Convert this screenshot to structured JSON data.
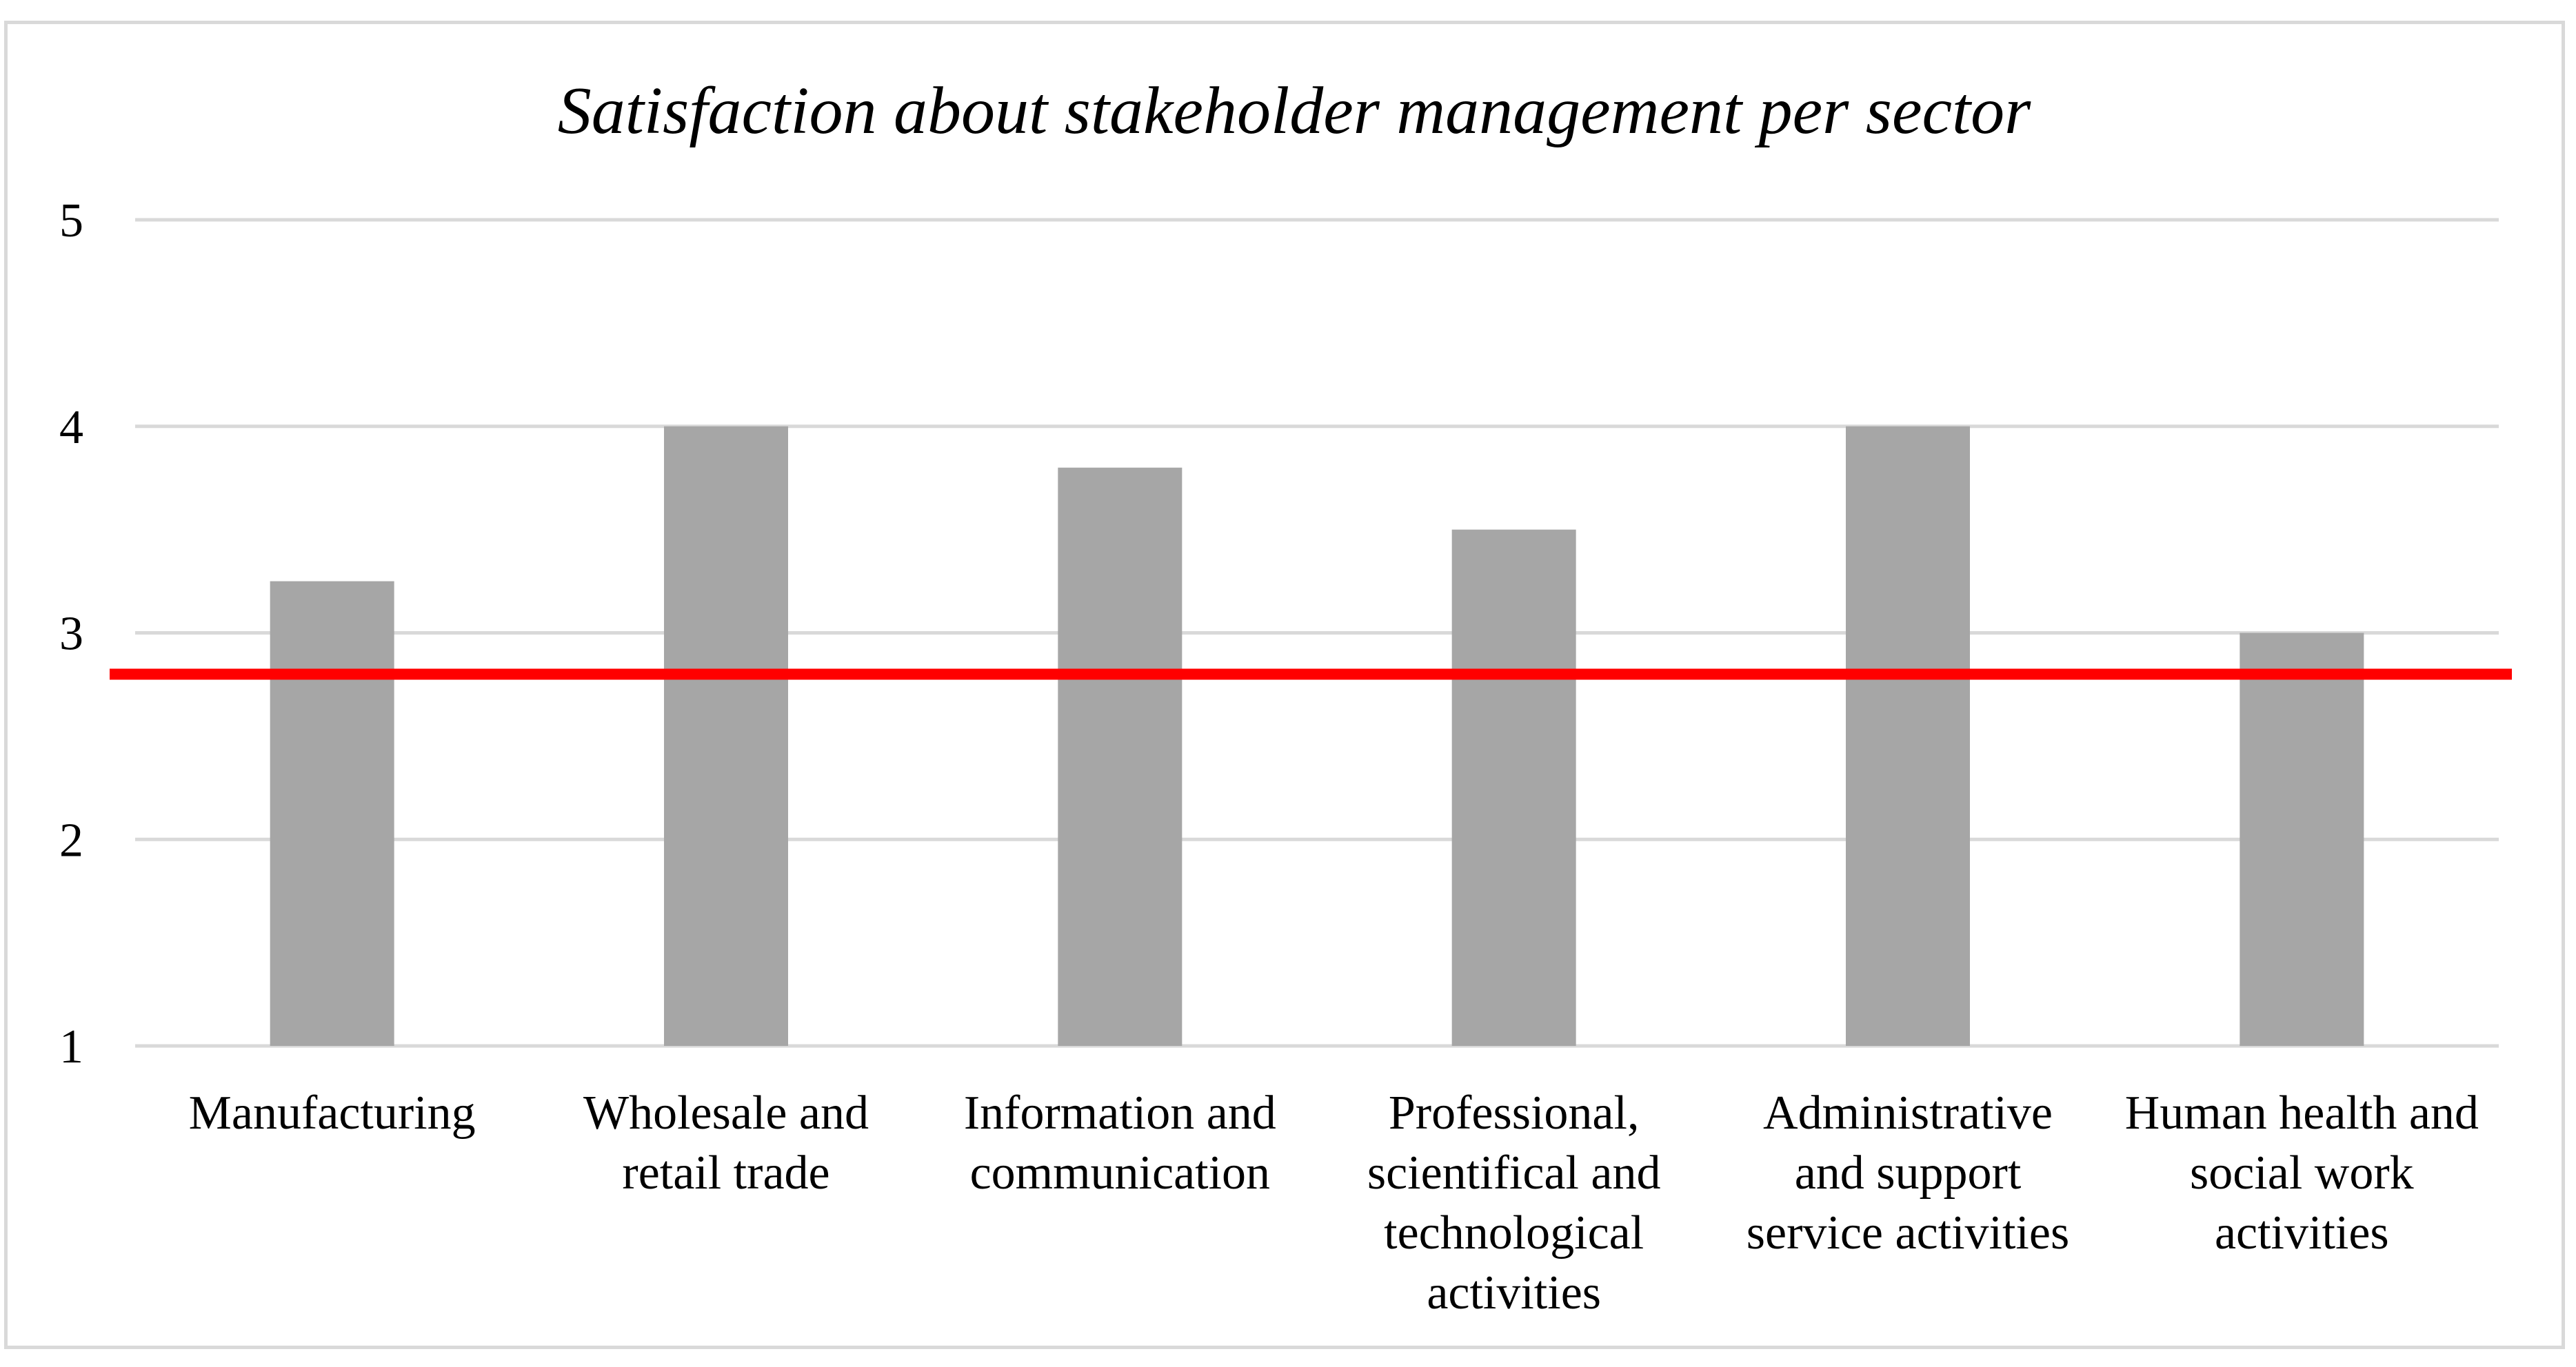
{
  "colors": {
    "bar": "#a6a6a6",
    "gridline": "#d9d9d9",
    "reference_line": "#ff0000"
  },
  "chart_data": {
    "type": "bar",
    "title": "Satisfaction about stakeholder management per sector",
    "xlabel": "",
    "ylabel": "",
    "ylim": [
      1,
      5
    ],
    "yticks": [
      1,
      2,
      3,
      4,
      5
    ],
    "grid": true,
    "categories": [
      [
        "Manufacturing"
      ],
      [
        "Wholesale and",
        "retail trade"
      ],
      [
        "Information and",
        "communication"
      ],
      [
        "Professional,",
        "scientifical and",
        "technological",
        "activities"
      ],
      [
        "Administrative",
        "and support",
        "service activities"
      ],
      [
        "Human health and",
        "social work",
        "activities"
      ]
    ],
    "values": [
      3.25,
      4.0,
      3.8,
      3.5,
      4.0,
      3.0
    ],
    "reference_line": {
      "value": 2.8
    }
  }
}
